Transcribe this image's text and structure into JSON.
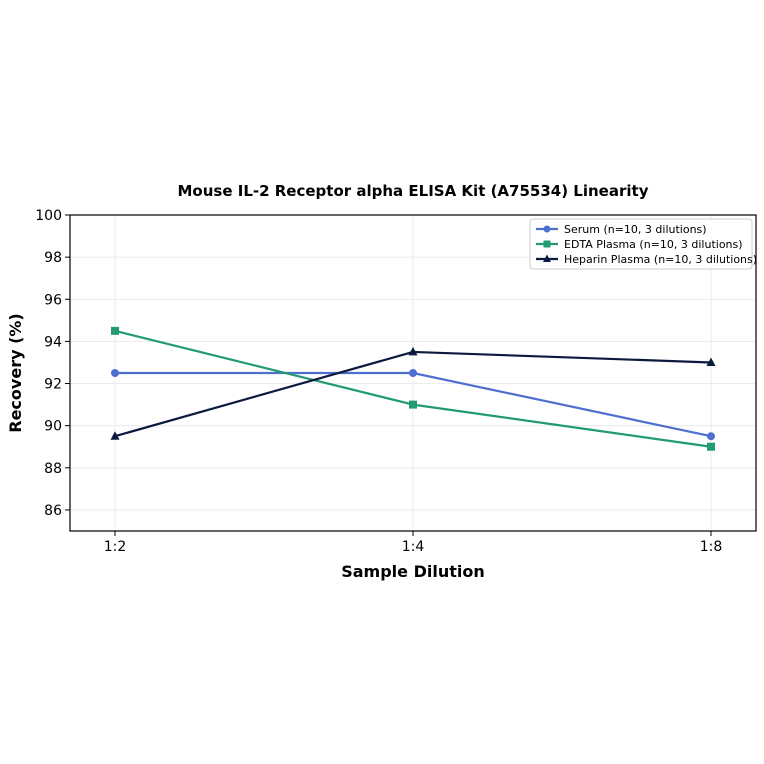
{
  "chart_data": {
    "type": "line",
    "title": "Mouse IL-2 Receptor alpha ELISA Kit (A75534) Linearity",
    "xlabel": "Sample Dilution",
    "ylabel": "Recovery (%)",
    "categories": [
      "1:2",
      "1:4",
      "1:8"
    ],
    "ylim": [
      85,
      100
    ],
    "yticks": [
      86,
      88,
      90,
      92,
      94,
      96,
      98,
      100
    ],
    "grid": true,
    "legend_position": "top-right",
    "series": [
      {
        "name": "Serum (n=10, 3 dilutions)",
        "values": [
          92.5,
          92.5,
          89.5
        ],
        "color": "#4e6fd0",
        "marker": "circle"
      },
      {
        "name": "EDTA Plasma (n=10, 3 dilutions)",
        "values": [
          94.5,
          91.0,
          89.0
        ],
        "color": "#229a74",
        "marker": "square"
      },
      {
        "name": "Heparin Plasma (n=10, 3 dilutions)",
        "values": [
          89.5,
          93.5,
          93.0
        ],
        "color": "#0c1a40",
        "marker": "triangle"
      }
    ]
  }
}
